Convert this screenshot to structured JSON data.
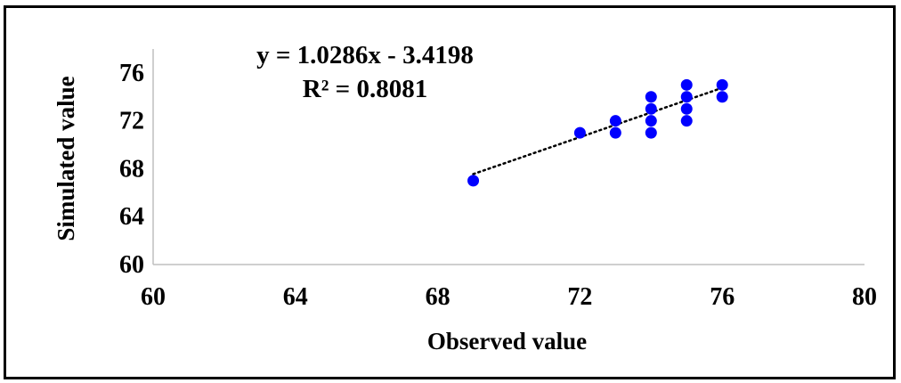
{
  "chart_data": {
    "type": "scatter",
    "title": "",
    "xlabel": "Observed value",
    "ylabel": "Simulated value",
    "xlim": [
      60,
      80
    ],
    "ylim": [
      60,
      78
    ],
    "xticks": [
      60,
      64,
      68,
      72,
      76,
      80
    ],
    "yticks": [
      60,
      64,
      68,
      72,
      76
    ],
    "grid": false,
    "legend": "none",
    "series": [
      {
        "points": [
          {
            "x": 69,
            "y": 67
          },
          {
            "x": 72,
            "y": 71
          },
          {
            "x": 73,
            "y": 71
          },
          {
            "x": 73,
            "y": 72
          },
          {
            "x": 74,
            "y": 71
          },
          {
            "x": 74,
            "y": 72
          },
          {
            "x": 74,
            "y": 73
          },
          {
            "x": 74,
            "y": 74
          },
          {
            "x": 75,
            "y": 72
          },
          {
            "x": 75,
            "y": 73
          },
          {
            "x": 75,
            "y": 74
          },
          {
            "x": 75,
            "y": 75
          },
          {
            "x": 76,
            "y": 74
          },
          {
            "x": 76,
            "y": 75
          }
        ],
        "color": "#0000ff"
      }
    ],
    "trendline": {
      "type": "linear",
      "slope": 1.0286,
      "intercept": -3.4198,
      "x_range": [
        69,
        76
      ],
      "style": "dotted",
      "color": "#000000",
      "equation_label": "y = 1.0286x - 3.4198",
      "r2_label": "R² = 0.8081"
    }
  }
}
